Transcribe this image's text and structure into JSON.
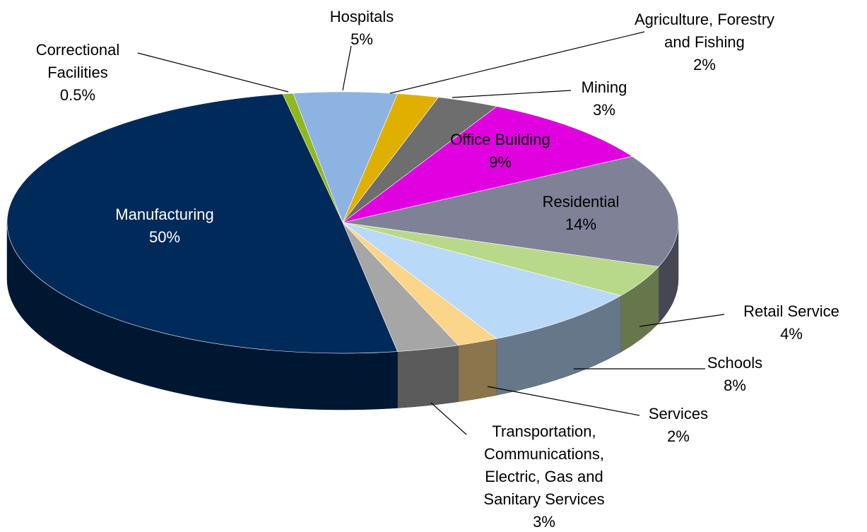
{
  "chart_data": {
    "type": "pie",
    "categories": [
      "Hospitals",
      "Agriculture, Forestry and Fishing",
      "Mining",
      "Office Building",
      "Residential",
      "Retail Service",
      "Schools",
      "Services",
      "Transportation, Communications, Electric, Gas and Sanitary Services",
      "Manufacturing",
      "Correctional Facilities"
    ],
    "values": [
      5,
      2,
      3,
      9,
      14,
      4,
      8,
      2,
      3,
      50,
      0.5
    ],
    "value_labels": [
      "5%",
      "2%",
      "3%",
      "9%",
      "14%",
      "4%",
      "8%",
      "2%",
      "3%",
      "50%",
      "0.5%"
    ],
    "colors": [
      "#8db3e2",
      "#e0b000",
      "#6e6e6e",
      "#e000e0",
      "#7f8196",
      "#b9d98a",
      "#b9d9f9",
      "#fad58a",
      "#a6a6a6",
      "#002a5a",
      "#8fb81a"
    ]
  }
}
